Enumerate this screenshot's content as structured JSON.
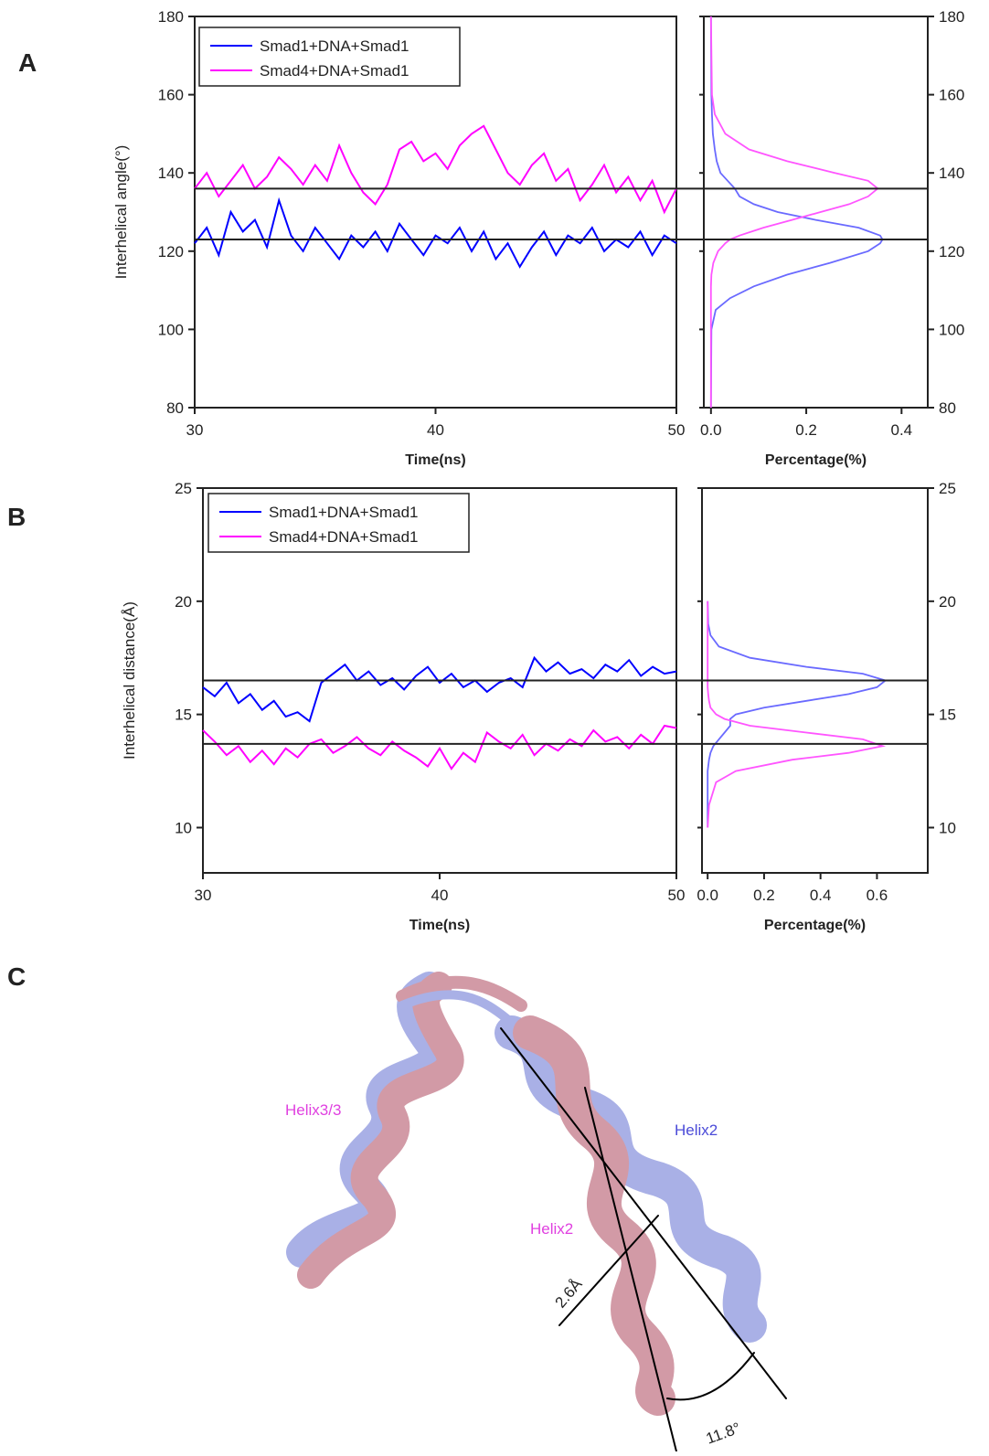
{
  "chart_data": [
    {
      "panel": "A",
      "type": "line",
      "xlabel": "Time(ns)",
      "ylabel": "Interhelical angle(°)",
      "legend": "upper left",
      "x": [
        30,
        30.5,
        31,
        31.5,
        32,
        32.5,
        33,
        33.5,
        34,
        34.5,
        35,
        35.5,
        36,
        36.5,
        37,
        37.5,
        38,
        38.5,
        39,
        39.5,
        40,
        40.5,
        41,
        41.5,
        42,
        42.5,
        43,
        43.5,
        44,
        44.5,
        45,
        45.5,
        46,
        46.5,
        47,
        47.5,
        48,
        48.5,
        49,
        49.5,
        50
      ],
      "xlim": [
        30,
        50
      ],
      "xticks": [
        30,
        40,
        50
      ],
      "ylim": [
        80,
        180
      ],
      "yticks": [
        80,
        100,
        120,
        140,
        160,
        180
      ],
      "reference_lines": [
        136,
        123
      ],
      "series": [
        {
          "name": "Smad1+DNA+Smad1",
          "color": "#0000ff",
          "values": [
            122,
            126,
            119,
            130,
            125,
            128,
            121,
            133,
            124,
            120,
            126,
            122,
            118,
            124,
            121,
            125,
            120,
            127,
            123,
            119,
            124,
            122,
            126,
            120,
            125,
            118,
            122,
            116,
            121,
            125,
            119,
            124,
            122,
            126,
            120,
            123,
            121,
            125,
            119,
            124,
            122
          ]
        },
        {
          "name": "Smad4+DNA+Smad1",
          "color": "#ff00ff",
          "values": [
            136,
            140,
            134,
            138,
            142,
            136,
            139,
            144,
            141,
            137,
            142,
            138,
            147,
            140,
            135,
            132,
            137,
            146,
            148,
            143,
            145,
            141,
            147,
            150,
            152,
            146,
            140,
            137,
            142,
            145,
            138,
            141,
            133,
            137,
            142,
            135,
            139,
            133,
            138,
            130,
            136
          ]
        }
      ]
    },
    {
      "type": "distribution",
      "xlabel": "Percentage(%)",
      "y": [
        80,
        100,
        105,
        108,
        111,
        114,
        117,
        120,
        122,
        123,
        124,
        126,
        128,
        130,
        132,
        134,
        136,
        138,
        140,
        143,
        146,
        150,
        155,
        160,
        180
      ],
      "ylim": [
        80,
        180
      ],
      "yticks": [
        80,
        100,
        120,
        140,
        160,
        180
      ],
      "xlim": [
        -0.015,
        0.455
      ],
      "xticks": [
        {
          "value": 0,
          "label": "0.0"
        },
        0.2,
        0.4
      ],
      "reference_lines": [
        136,
        123
      ],
      "series": [
        {
          "color": "#6a6aff",
          "values": [
            0,
            0.001,
            0.01,
            0.04,
            0.09,
            0.16,
            0.25,
            0.33,
            0.355,
            0.36,
            0.355,
            0.31,
            0.22,
            0.14,
            0.09,
            0.06,
            0.05,
            0.035,
            0.02,
            0.012,
            0.008,
            0.004,
            0.002,
            0.001,
            0
          ]
        },
        {
          "color": "#ff55ff",
          "values": [
            0,
            0,
            0,
            0,
            0,
            0.001,
            0.005,
            0.015,
            0.03,
            0.04,
            0.06,
            0.11,
            0.17,
            0.23,
            0.29,
            0.33,
            0.35,
            0.33,
            0.26,
            0.16,
            0.08,
            0.03,
            0.008,
            0.002,
            0
          ]
        }
      ]
    },
    {
      "panel": "B",
      "type": "line",
      "xlabel": "Time(ns)",
      "ylabel": "Interhelical distance(Å)",
      "legend": "upper left",
      "x": [
        30,
        30.5,
        31,
        31.5,
        32,
        32.5,
        33,
        33.5,
        34,
        34.5,
        35,
        35.5,
        36,
        36.5,
        37,
        37.5,
        38,
        38.5,
        39,
        39.5,
        40,
        40.5,
        41,
        41.5,
        42,
        42.5,
        43,
        43.5,
        44,
        44.5,
        45,
        45.5,
        46,
        46.5,
        47,
        47.5,
        48,
        48.5,
        49,
        49.5,
        50
      ],
      "xlim": [
        30,
        50
      ],
      "xticks": [
        30,
        40,
        50
      ],
      "ylim": [
        8,
        25
      ],
      "yticks": [
        10,
        15,
        20,
        25
      ],
      "reference_lines": [
        16.5,
        13.7
      ],
      "series": [
        {
          "name": "Smad1+DNA+Smad1",
          "color": "#0000ff",
          "values": [
            16.2,
            15.8,
            16.4,
            15.5,
            15.9,
            15.2,
            15.6,
            14.9,
            15.1,
            14.7,
            16.4,
            16.8,
            17.2,
            16.5,
            16.9,
            16.3,
            16.6,
            16.1,
            16.7,
            17.1,
            16.4,
            16.8,
            16.2,
            16.5,
            16.0,
            16.4,
            16.6,
            16.2,
            17.5,
            16.9,
            17.3,
            16.8,
            17.0,
            16.6,
            17.2,
            16.9,
            17.4,
            16.7,
            17.1,
            16.8,
            16.9
          ]
        },
        {
          "name": "Smad4+DNA+Smad1",
          "color": "#ff00ff",
          "values": [
            14.3,
            13.8,
            13.2,
            13.6,
            12.9,
            13.4,
            12.8,
            13.5,
            13.1,
            13.7,
            13.9,
            13.3,
            13.6,
            14.0,
            13.5,
            13.2,
            13.8,
            13.4,
            13.1,
            12.7,
            13.5,
            12.6,
            13.3,
            12.9,
            14.2,
            13.8,
            13.5,
            14.1,
            13.2,
            13.7,
            13.4,
            13.9,
            13.6,
            14.3,
            13.8,
            14.0,
            13.5,
            14.1,
            13.7,
            14.5,
            14.4
          ]
        }
      ]
    },
    {
      "type": "distribution",
      "xlabel": "Percentage(%)",
      "y": [
        10,
        11,
        12,
        12.5,
        13,
        13.3,
        13.6,
        13.9,
        14.2,
        14.5,
        14.8,
        15,
        15.3,
        15.6,
        15.9,
        16.2,
        16.5,
        16.8,
        17.1,
        17.5,
        18,
        18.5,
        19,
        20
      ],
      "ylim": [
        8,
        25
      ],
      "yticks": [
        10,
        15,
        20,
        25
      ],
      "xlim": [
        -0.02,
        0.78
      ],
      "xticks": [
        {
          "value": 0,
          "label": "0.0"
        },
        0.2,
        0.4,
        0.6
      ],
      "reference_lines": [
        16.5,
        13.7
      ],
      "series": [
        {
          "color": "#6a6aff",
          "values": [
            0,
            0,
            0,
            0,
            0.005,
            0.01,
            0.02,
            0.04,
            0.06,
            0.08,
            0.08,
            0.1,
            0.2,
            0.35,
            0.5,
            0.6,
            0.63,
            0.55,
            0.35,
            0.15,
            0.04,
            0.01,
            0.002,
            0
          ]
        },
        {
          "color": "#ff55ff",
          "values": [
            0,
            0.005,
            0.03,
            0.1,
            0.3,
            0.5,
            0.62,
            0.55,
            0.35,
            0.15,
            0.06,
            0.03,
            0.01,
            0.005,
            0.002,
            0,
            0,
            0,
            0,
            0,
            0,
            0,
            0,
            0
          ]
        }
      ]
    }
  ],
  "diagram": {
    "panel": "C",
    "labels": [
      "Helix3/3",
      "Helix2",
      "Helix2",
      "2.6Å",
      "11.8°"
    ]
  }
}
